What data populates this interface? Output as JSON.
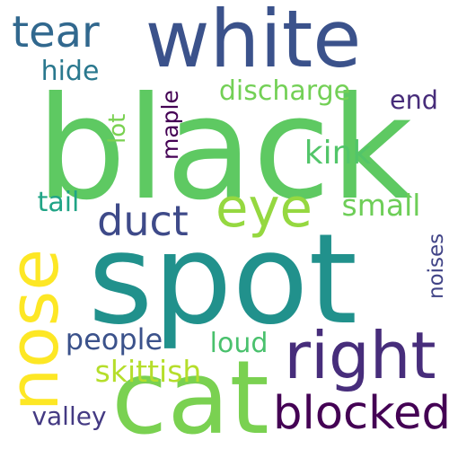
{
  "word_cloud": {
    "words": [
      {
        "id": "black",
        "text": "black",
        "color": "#5ec962"
      },
      {
        "id": "white",
        "text": "white",
        "color": "#3b528b"
      },
      {
        "id": "spot",
        "text": "spot",
        "color": "#21918c"
      },
      {
        "id": "cat",
        "text": "cat",
        "color": "#7ad151"
      },
      {
        "id": "nose",
        "text": "nose",
        "color": "#fde725"
      },
      {
        "id": "right",
        "text": "right",
        "color": "#472d7b"
      },
      {
        "id": "eye",
        "text": "eye",
        "color": "#95d840"
      },
      {
        "id": "duct",
        "text": "duct",
        "color": "#3e4a89"
      },
      {
        "id": "blocked",
        "text": "blocked",
        "color": "#440154"
      },
      {
        "id": "tear",
        "text": "tear",
        "color": "#31688e"
      },
      {
        "id": "discharge",
        "text": "discharge",
        "color": "#73d056"
      },
      {
        "id": "kink",
        "text": "kink",
        "color": "#52c569"
      },
      {
        "id": "small",
        "text": "small",
        "color": "#6ece58"
      },
      {
        "id": "noises",
        "text": "noises",
        "color": "#414487"
      },
      {
        "id": "people",
        "text": "people",
        "color": "#3b528b"
      },
      {
        "id": "loud",
        "text": "loud",
        "color": "#4ac16d"
      },
      {
        "id": "skittish",
        "text": "skittish",
        "color": "#b5de2b"
      },
      {
        "id": "valley",
        "text": "valley",
        "color": "#443a83"
      },
      {
        "id": "end",
        "text": "end",
        "color": "#472c7a"
      },
      {
        "id": "lot",
        "text": "lot",
        "color": "#7ad151"
      },
      {
        "id": "maple",
        "text": "maple",
        "color": "#440154"
      },
      {
        "id": "hide",
        "text": "hide",
        "color": "#2a788e"
      },
      {
        "id": "tail",
        "text": "tail",
        "color": "#20a486"
      }
    ]
  }
}
